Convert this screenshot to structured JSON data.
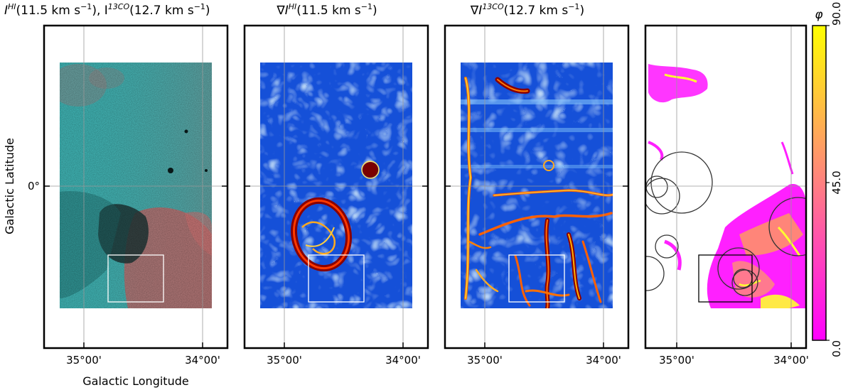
{
  "chart_data": [
    {
      "type": "heatmap",
      "title_parts": [
        "I",
        "HI",
        "(11.5 km s",
        "−1",
        "), I",
        "13CO",
        "(12.7 km s",
        "−1",
        ")"
      ],
      "xlabel": "Galactic Longitude",
      "ylabel": "Galactic Latitude",
      "x_ticks": [
        "35°00'",
        "34°00'"
      ],
      "y_ticks": [
        "0°"
      ],
      "colors": {
        "hi": "#2ec8c8",
        "co": "#e06060"
      },
      "box": "white"
    },
    {
      "type": "heatmap",
      "title_parts": [
        "∇I",
        "HI",
        "(11.5 km s",
        "−1",
        ")"
      ],
      "x_ticks": [
        "35°00'",
        "34°00'"
      ],
      "colormap": "jet",
      "box": "white"
    },
    {
      "type": "heatmap",
      "title_parts": [
        "∇I",
        "13CO",
        "(12.7 km s",
        "−1",
        ")"
      ],
      "x_ticks": [
        "35°00'",
        "34°00'"
      ],
      "colormap": "jet",
      "box": "white"
    },
    {
      "type": "heatmap",
      "x_ticks": [
        "35°00'",
        "34°00'"
      ],
      "colormap": "spring",
      "box": "black",
      "circles_count": 9,
      "colorbar": {
        "label": "φ",
        "ticks": [
          "0.0",
          "45.0",
          "90.0"
        ],
        "range": [
          0,
          90
        ]
      }
    }
  ]
}
